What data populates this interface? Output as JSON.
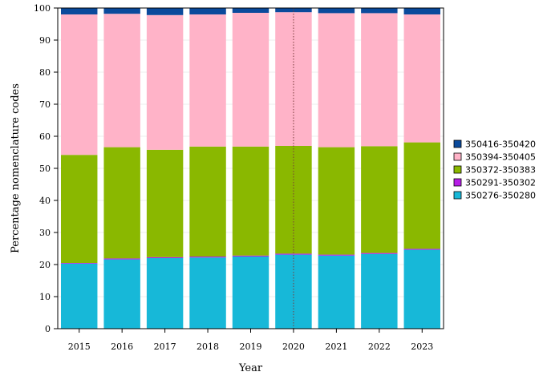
{
  "chart_data": {
    "type": "bar",
    "stacked": true,
    "xlabel": "Year",
    "ylabel": "Percentage nomenclature codes",
    "ylim": [
      0,
      100
    ],
    "yticks": [
      0,
      10,
      20,
      30,
      40,
      50,
      60,
      70,
      80,
      90,
      100
    ],
    "grid": true,
    "legend_position": "right",
    "categories": [
      "2015",
      "2016",
      "2017",
      "2018",
      "2019",
      "2020",
      "2021",
      "2022",
      "2023"
    ],
    "reference_line_x": "2020",
    "series": [
      {
        "name": "350276-350280",
        "color": "#17b8d8",
        "values": [
          20.3,
          21.6,
          22.0,
          22.2,
          22.5,
          23.1,
          22.8,
          23.3,
          24.6
        ]
      },
      {
        "name": "350291-350302",
        "color": "#b61ee6",
        "values": [
          0.2,
          0.3,
          0.3,
          0.3,
          0.3,
          0.3,
          0.3,
          0.3,
          0.3
        ]
      },
      {
        "name": "350372-350383",
        "color": "#8ab800",
        "values": [
          33.7,
          34.7,
          33.5,
          34.3,
          34.0,
          33.6,
          33.5,
          33.3,
          33.2
        ]
      },
      {
        "name": "350394-350405",
        "color": "#ffb3c8",
        "values": [
          43.8,
          41.6,
          42.0,
          41.2,
          41.7,
          41.7,
          41.8,
          41.5,
          39.9
        ]
      },
      {
        "name": "350416-350420",
        "color": "#0a4a9c",
        "values": [
          2.0,
          1.8,
          2.2,
          2.0,
          1.5,
          1.3,
          1.6,
          1.6,
          2.0
        ]
      }
    ]
  }
}
